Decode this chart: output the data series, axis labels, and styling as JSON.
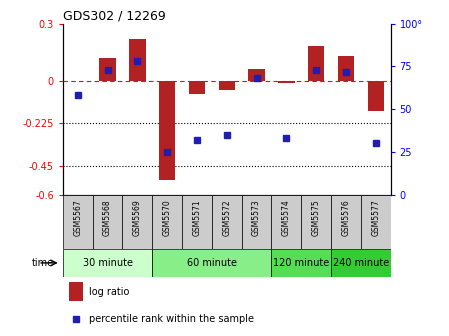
{
  "title": "GDS302 / 12269",
  "samples": [
    "GSM5567",
    "GSM5568",
    "GSM5569",
    "GSM5570",
    "GSM5571",
    "GSM5572",
    "GSM5573",
    "GSM5574",
    "GSM5575",
    "GSM5576",
    "GSM5577"
  ],
  "log_ratio": [
    0.0,
    0.12,
    0.22,
    -0.52,
    -0.07,
    -0.05,
    0.06,
    -0.01,
    0.18,
    0.13,
    -0.16
  ],
  "percentile": [
    58,
    73,
    78,
    25,
    32,
    35,
    68,
    33,
    73,
    72,
    30
  ],
  "bar_color": "#b22222",
  "dot_color": "#1e1eb4",
  "ylim_left": [
    -0.6,
    0.3
  ],
  "ylim_right": [
    0,
    100
  ],
  "yticks_left": [
    0.3,
    0.0,
    -0.225,
    -0.45,
    -0.6
  ],
  "ytick_labels_left": [
    "0.3",
    "0",
    "-0.225",
    "-0.45",
    "-0.6"
  ],
  "yticks_right": [
    100,
    75,
    50,
    25,
    0
  ],
  "ytick_labels_right": [
    "100°",
    "75",
    "50",
    "25",
    "0"
  ],
  "hlines": [
    -0.225,
    -0.45
  ],
  "groups": [
    {
      "label": "30 minute",
      "start": 0,
      "end": 3,
      "color": "#ccffcc"
    },
    {
      "label": "60 minute",
      "start": 3,
      "end": 7,
      "color": "#88ee88"
    },
    {
      "label": "120 minute",
      "start": 7,
      "end": 9,
      "color": "#55dd55"
    },
    {
      "label": "240 minute",
      "start": 9,
      "end": 11,
      "color": "#33cc33"
    }
  ],
  "time_label": "time",
  "legend_log": "log ratio",
  "legend_pct": "percentile rank within the sample",
  "background_color": "#ffffff",
  "plot_bg": "#ffffff",
  "sample_box_color": "#cccccc"
}
